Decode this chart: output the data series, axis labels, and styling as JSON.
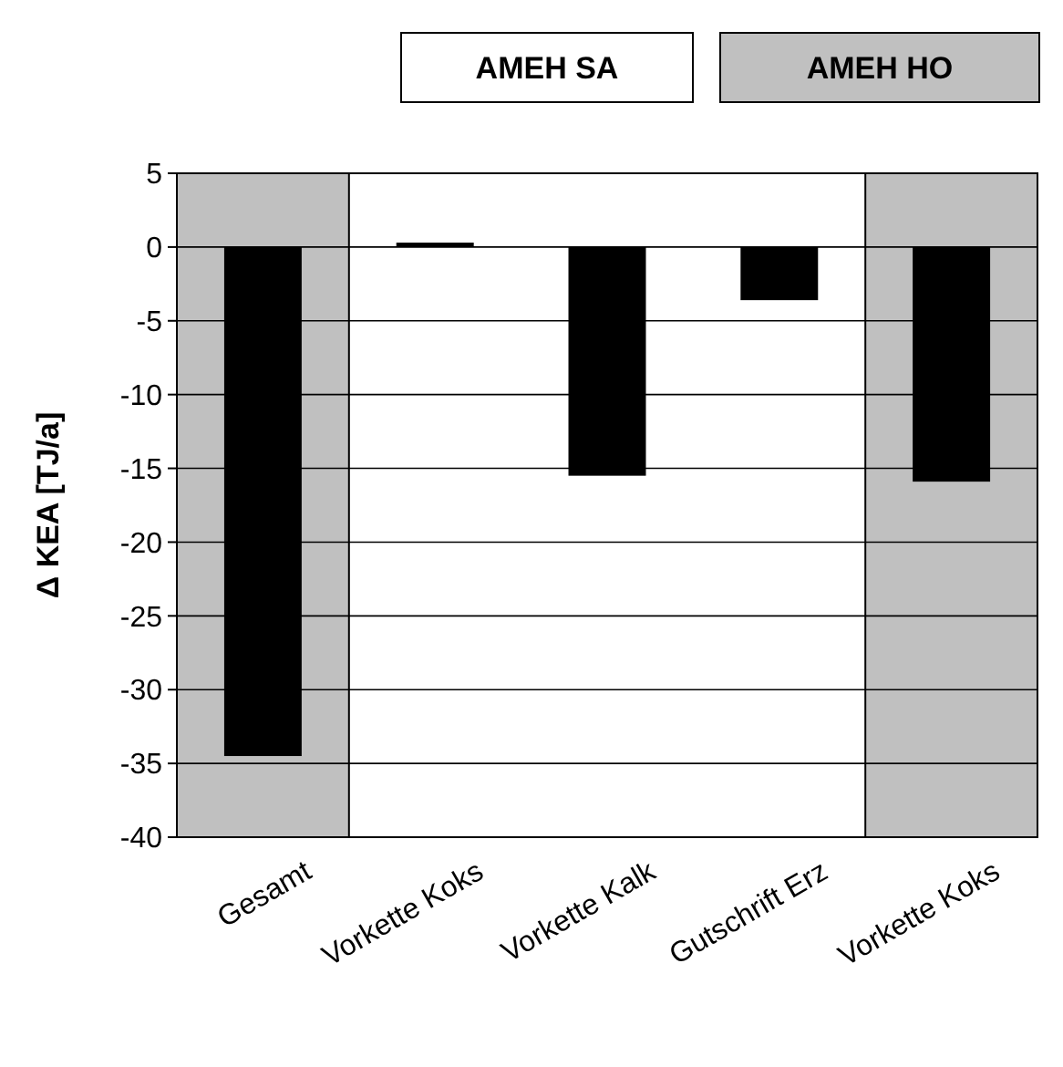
{
  "chart_data": {
    "type": "bar",
    "ylabel": "Δ KEA [TJ/a]",
    "categories": [
      "Gesamt",
      "Vorkette Koks",
      "Vorkette Kalk",
      "Gutschrift Erz",
      "Vorkette Koks"
    ],
    "values": [
      -34.5,
      0.3,
      -15.5,
      -3.6,
      -15.9
    ],
    "color": "#000000",
    "ylim": [
      -40,
      5
    ],
    "yticks": [
      -40,
      -35,
      -30,
      -25,
      -20,
      -15,
      -10,
      -5,
      0,
      5
    ],
    "grid": "y",
    "bands": [
      {
        "axis": "x",
        "from": "Gesamt",
        "to": "Gesamt",
        "color": "#c0c0c0"
      }
    ],
    "annotations": [
      "AMEH SA",
      "AMEH HO"
    ]
  }
}
